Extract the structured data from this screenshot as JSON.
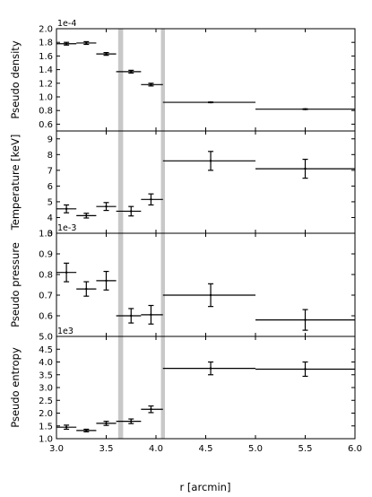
{
  "chart_data": {
    "type": "scatter",
    "shared_x": {
      "xlabel": "r [arcmin]",
      "xlim": [
        3.0,
        6.0
      ],
      "ticks": [
        "3.0",
        "3.5",
        "4.0",
        "4.5",
        "5.0",
        "5.5",
        "6.0"
      ],
      "shaded_bands": [
        [
          3.62,
          3.67
        ],
        [
          4.05,
          4.09
        ]
      ],
      "band_color": "#c8c8c8"
    },
    "panels": [
      {
        "ylabel": "Pseudo density",
        "offset_text": "1e-4",
        "ylim": [
          0.5,
          2.0
        ],
        "ticks": [
          "0.6",
          "0.8",
          "1.0",
          "1.2",
          "1.4",
          "1.6",
          "1.8",
          "2.0"
        ],
        "points": [
          {
            "x": 3.1,
            "xerr": [
              3.0,
              3.2
            ],
            "y": 1.78,
            "yerr": 0.02
          },
          {
            "x": 3.3,
            "xerr": [
              3.2,
              3.4
            ],
            "y": 1.79,
            "yerr": 0.02
          },
          {
            "x": 3.5,
            "xerr": [
              3.4,
              3.6
            ],
            "y": 1.63,
            "yerr": 0.02
          },
          {
            "x": 3.75,
            "xerr": [
              3.6,
              3.85
            ],
            "y": 1.37,
            "yerr": 0.02
          },
          {
            "x": 3.95,
            "xerr": [
              3.85,
              4.07
            ],
            "y": 1.18,
            "yerr": 0.02
          },
          {
            "x": 4.55,
            "xerr": [
              4.07,
              5.0
            ],
            "y": 0.92,
            "yerr": 0.005
          },
          {
            "x": 5.5,
            "xerr": [
              5.0,
              6.0
            ],
            "y": 0.82,
            "yerr": 0.005
          }
        ]
      },
      {
        "ylabel": "Temperature [keV]",
        "offset_text": "",
        "ylim": [
          3.0,
          9.5
        ],
        "ticks": [
          "3",
          "4",
          "5",
          "6",
          "7",
          "8",
          "9"
        ],
        "points": [
          {
            "x": 3.1,
            "xerr": [
              3.0,
              3.2
            ],
            "y": 4.55,
            "yerr": 0.25
          },
          {
            "x": 3.3,
            "xerr": [
              3.2,
              3.4
            ],
            "y": 4.12,
            "yerr": 0.15
          },
          {
            "x": 3.5,
            "xerr": [
              3.4,
              3.6
            ],
            "y": 4.7,
            "yerr": 0.25
          },
          {
            "x": 3.75,
            "xerr": [
              3.6,
              3.85
            ],
            "y": 4.4,
            "yerr": 0.3
          },
          {
            "x": 3.95,
            "xerr": [
              3.85,
              4.07
            ],
            "y": 5.15,
            "yerr": 0.35
          },
          {
            "x": 4.55,
            "xerr": [
              4.07,
              5.0
            ],
            "y": 7.6,
            "yerr": 0.6
          },
          {
            "x": 5.5,
            "xerr": [
              5.0,
              6.0
            ],
            "y": 7.1,
            "yerr": 0.6
          }
        ]
      },
      {
        "ylabel": "Pseudo pressure",
        "offset_text": "1e-3",
        "ylim": [
          0.5,
          1.0
        ],
        "ticks": [
          "0.6",
          "0.7",
          "0.8",
          "0.9",
          "1.0"
        ],
        "points": [
          {
            "x": 3.1,
            "xerr": [
              3.0,
              3.2
            ],
            "y": 0.81,
            "yerr": 0.045
          },
          {
            "x": 3.3,
            "xerr": [
              3.2,
              3.4
            ],
            "y": 0.73,
            "yerr": 0.035
          },
          {
            "x": 3.5,
            "xerr": [
              3.4,
              3.6
            ],
            "y": 0.77,
            "yerr": 0.045
          },
          {
            "x": 3.75,
            "xerr": [
              3.6,
              3.85
            ],
            "y": 0.6,
            "yerr": 0.035
          },
          {
            "x": 3.95,
            "xerr": [
              3.85,
              4.07
            ],
            "y": 0.605,
            "yerr": 0.045
          },
          {
            "x": 4.55,
            "xerr": [
              4.07,
              5.0
            ],
            "y": 0.7,
            "yerr": 0.055
          },
          {
            "x": 5.5,
            "xerr": [
              5.0,
              6.0
            ],
            "y": 0.58,
            "yerr": 0.05
          }
        ]
      },
      {
        "ylabel": "Pseudo entropy",
        "offset_text": "1e3",
        "ylim": [
          1.0,
          5.0
        ],
        "ticks": [
          "1.0",
          "1.5",
          "2.0",
          "2.5",
          "3.0",
          "3.5",
          "4.0",
          "4.5",
          "5.0"
        ],
        "points": [
          {
            "x": 3.1,
            "xerr": [
              3.0,
              3.2
            ],
            "y": 1.45,
            "yerr": 0.08
          },
          {
            "x": 3.3,
            "xerr": [
              3.2,
              3.4
            ],
            "y": 1.32,
            "yerr": 0.05
          },
          {
            "x": 3.5,
            "xerr": [
              3.4,
              3.6
            ],
            "y": 1.6,
            "yerr": 0.08
          },
          {
            "x": 3.75,
            "xerr": [
              3.6,
              3.85
            ],
            "y": 1.68,
            "yerr": 0.09
          },
          {
            "x": 3.95,
            "xerr": [
              3.85,
              4.07
            ],
            "y": 2.15,
            "yerr": 0.13
          },
          {
            "x": 4.55,
            "xerr": [
              4.07,
              5.0
            ],
            "y": 3.75,
            "yerr": 0.25
          },
          {
            "x": 5.5,
            "xerr": [
              5.0,
              6.0
            ],
            "y": 3.72,
            "yerr": 0.28
          }
        ]
      }
    ]
  }
}
